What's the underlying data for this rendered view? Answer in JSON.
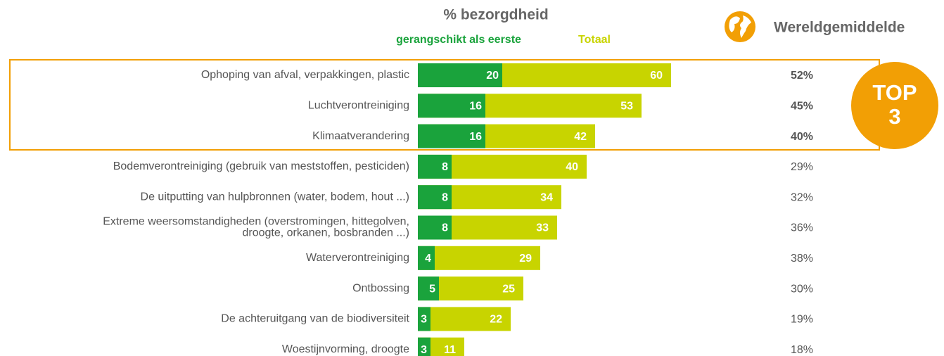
{
  "chart_data": {
    "type": "bar",
    "title": "% bezorgdheid",
    "categories": [
      "Ophoping van afval, verpakkingen, plastic",
      "Luchtverontreiniging",
      "Klimaatverandering",
      "Bodemverontreiniging (gebruik van meststoffen, pesticiden)",
      "De uitputting van hulpbronnen (water, bodem, hout ...)",
      "Extreme weersomstandigheden (overstromingen, hittegolven,\ndroogte, orkanen, bosbranden ...)",
      "Waterverontreiniging",
      "Ontbossing",
      "De achteruitgang van de biodiversiteit",
      "Woestijnvorming, droogte"
    ],
    "series": [
      {
        "name": "gerangschikt als eerste",
        "color": "#1aa33c",
        "values": [
          20,
          16,
          16,
          8,
          8,
          8,
          4,
          5,
          3,
          3
        ]
      },
      {
        "name": "Totaal",
        "color": "#c8d400",
        "values": [
          60,
          53,
          42,
          40,
          34,
          33,
          29,
          25,
          22,
          11
        ]
      }
    ],
    "world_average": {
      "title": "Wereldgemiddelde",
      "values": [
        52,
        45,
        40,
        29,
        32,
        36,
        38,
        30,
        19,
        18
      ],
      "value_labels": [
        "52%",
        "45%",
        "40%",
        "29%",
        "32%",
        "36%",
        "38%",
        "30%",
        "19%",
        "18%"
      ]
    },
    "highlight": {
      "label": [
        "TOP",
        "3"
      ],
      "color": "#f29f05"
    }
  }
}
